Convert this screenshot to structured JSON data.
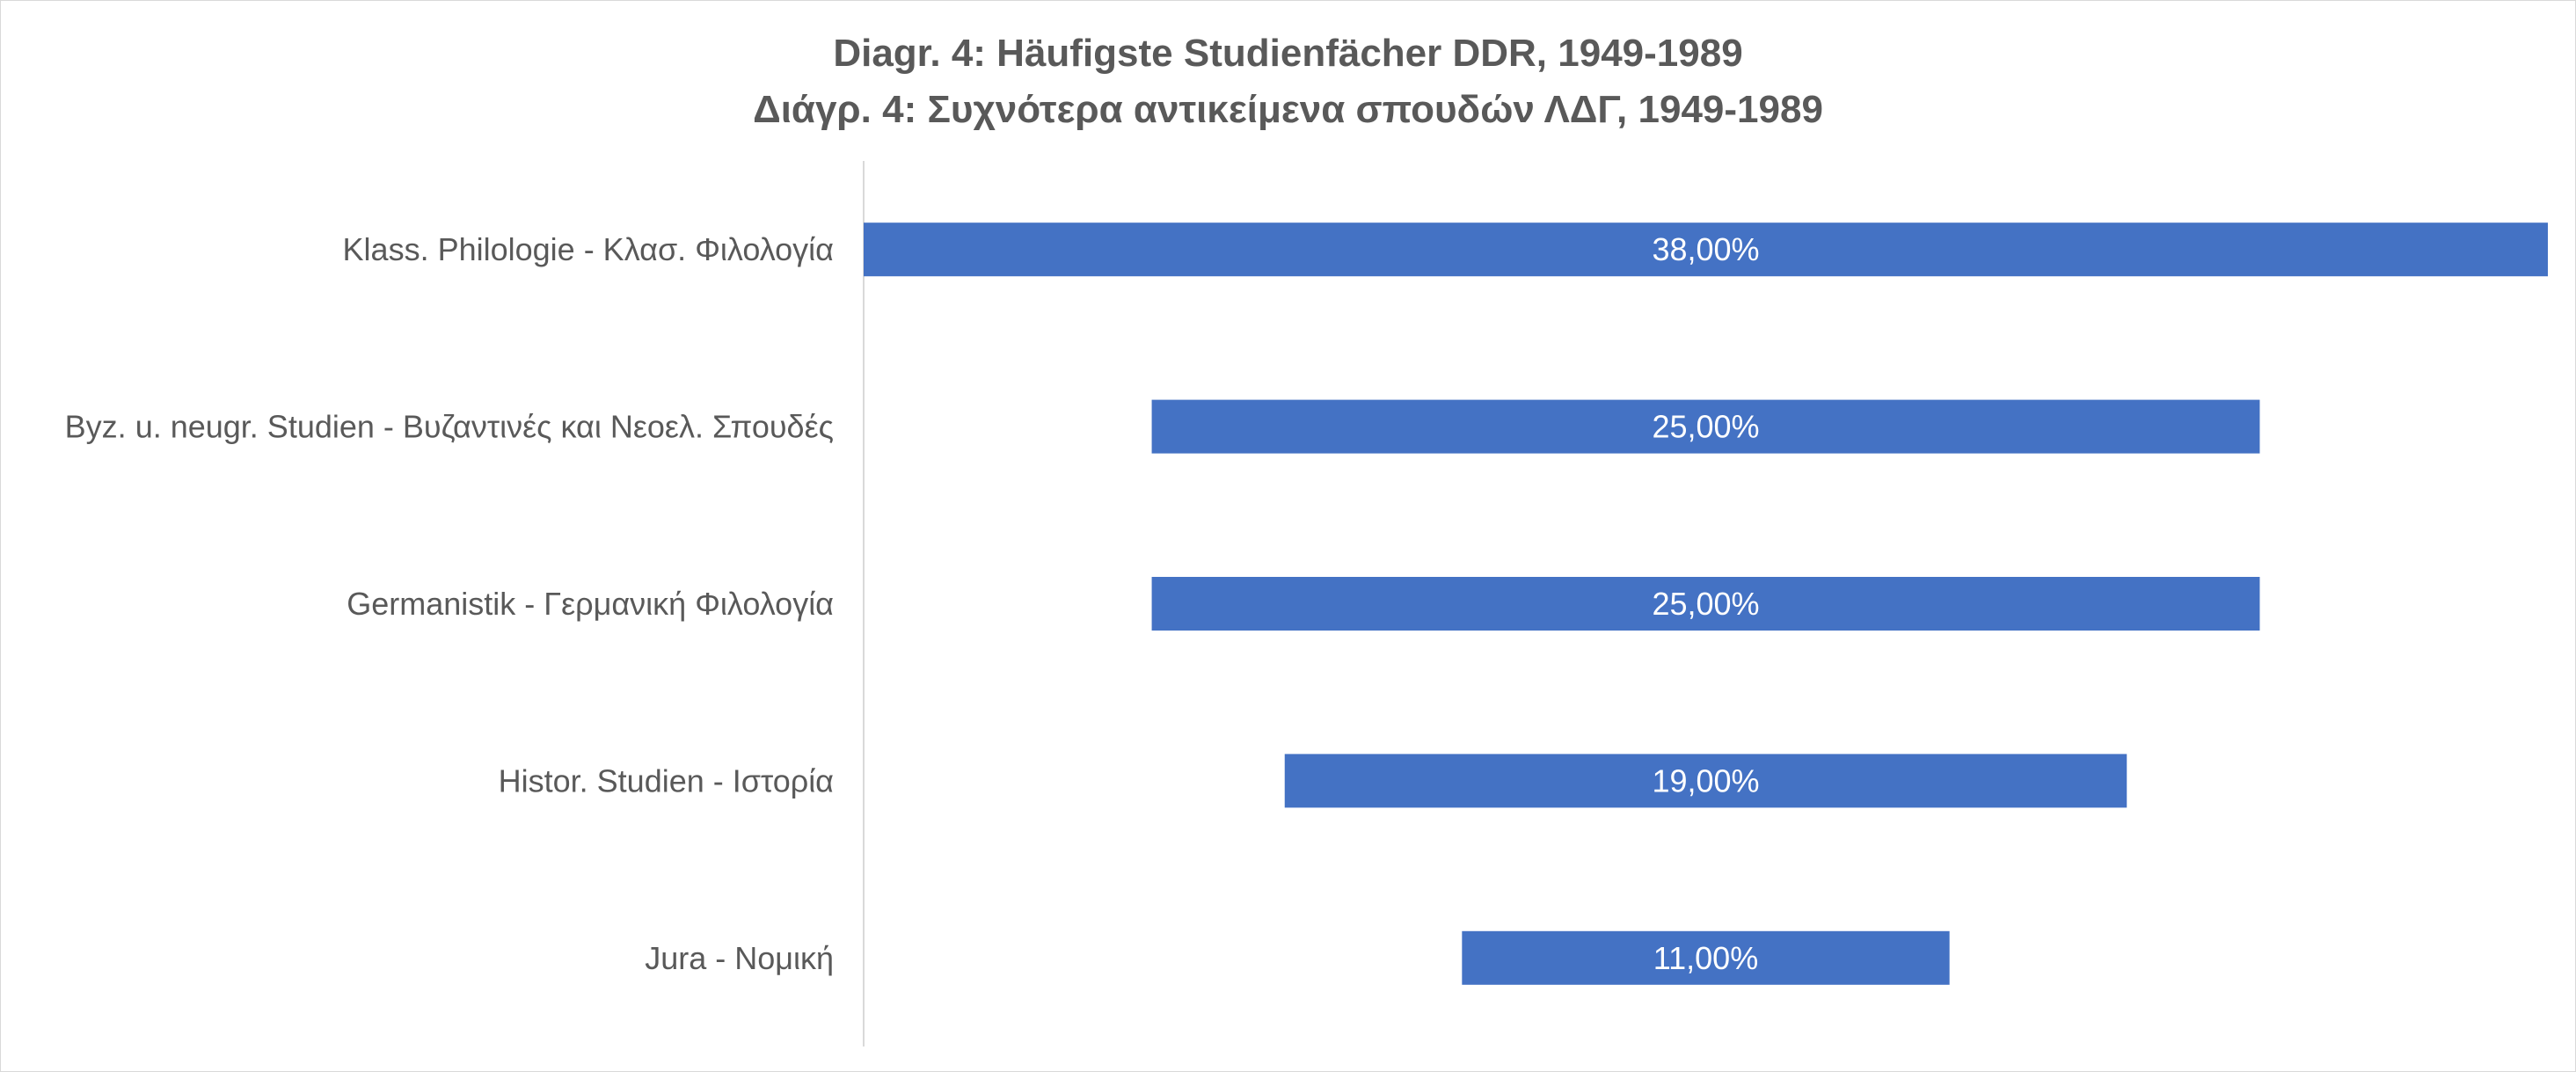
{
  "chart_data": {
    "type": "bar",
    "orientation": "horizontal-funnel",
    "title": "Diagr. 4: Häufigste Studienfächer DDR, 1949-1989",
    "subtitle": "Διάγρ. 4: Συχνότερα αντικείμενα σπουδών ΛΔΓ, 1949-1989",
    "categories": [
      "Klass. Philologie - Κλασ. Φιλολογία",
      "Byz. u. neugr. Studien - Βυζαντινές και Νεοελ. Σπουδές",
      "Germanistik - Γερμανική Φιλολογία",
      "Histor. Studien - Ιστορία",
      "Jura - Νομική"
    ],
    "values": [
      38,
      25,
      25,
      19,
      11
    ],
    "data_labels": [
      "38,00%",
      "25,00%",
      "25,00%",
      "19,00%",
      "11,00%"
    ],
    "value_unit": "%",
    "grid": false,
    "legend": "none",
    "bar_color": "#4472C4",
    "axis_color": "#d9d9d9"
  }
}
